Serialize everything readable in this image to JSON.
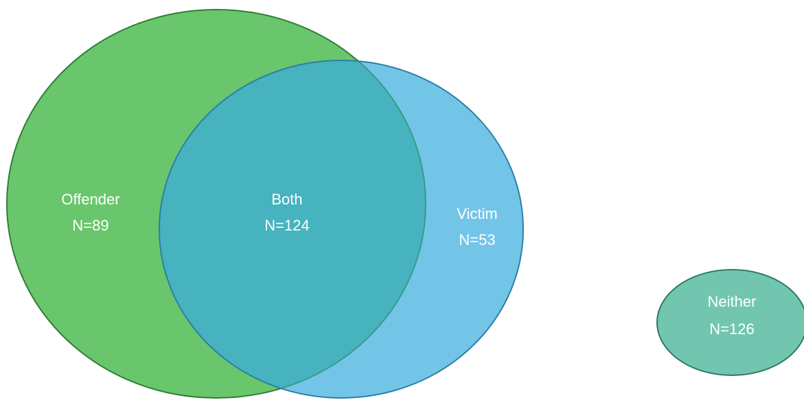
{
  "regions": [
    {
      "label": "Offender",
      "count": "N=89"
    },
    {
      "label": "Both",
      "count": "N=124"
    },
    {
      "label": "Victim",
      "count": "N=53"
    },
    {
      "label": "Neither",
      "count": "N=126"
    }
  ]
}
